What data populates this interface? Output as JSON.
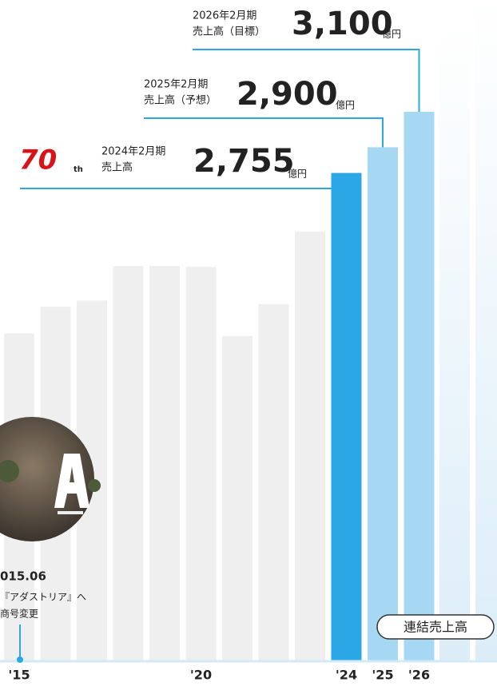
{
  "chart_data": {
    "type": "bar",
    "categories": [
      "'15",
      null,
      null,
      null,
      null,
      "'20",
      null,
      null,
      null,
      "'24",
      "'25",
      "'26"
    ],
    "values": [
      1850,
      2000,
      2035,
      2230,
      2230,
      2225,
      1835,
      2015,
      2425,
      2755,
      2900,
      3100
    ],
    "value_labels": [
      null,
      null,
      null,
      null,
      null,
      null,
      null,
      null,
      null,
      "2,755",
      "2,900",
      "3,100"
    ],
    "period_labels": [
      null,
      null,
      null,
      null,
      null,
      null,
      null,
      null,
      null,
      "2024年2月期",
      "2025年2月期",
      "2026年2月期"
    ],
    "metric_labels": [
      null,
      null,
      null,
      null,
      null,
      null,
      null,
      null,
      null,
      "売上高",
      "売上高（予想）",
      "売上高（目標）"
    ],
    "unit": "億円",
    "colors": [
      "#efefef",
      "#efefef",
      "#efefef",
      "#efefef",
      "#efefef",
      "#efefef",
      "#efefef",
      "#efefef",
      "#efefef",
      "#2aa7e4",
      "#a6d8f3",
      "#a6d8f3"
    ],
    "legend": "連結売上高",
    "logo": {
      "number": "70",
      "suffix": "th"
    },
    "event": {
      "date": "015.06",
      "lines": [
        "『アダストリア』へ",
        "商号変更"
      ]
    }
  }
}
